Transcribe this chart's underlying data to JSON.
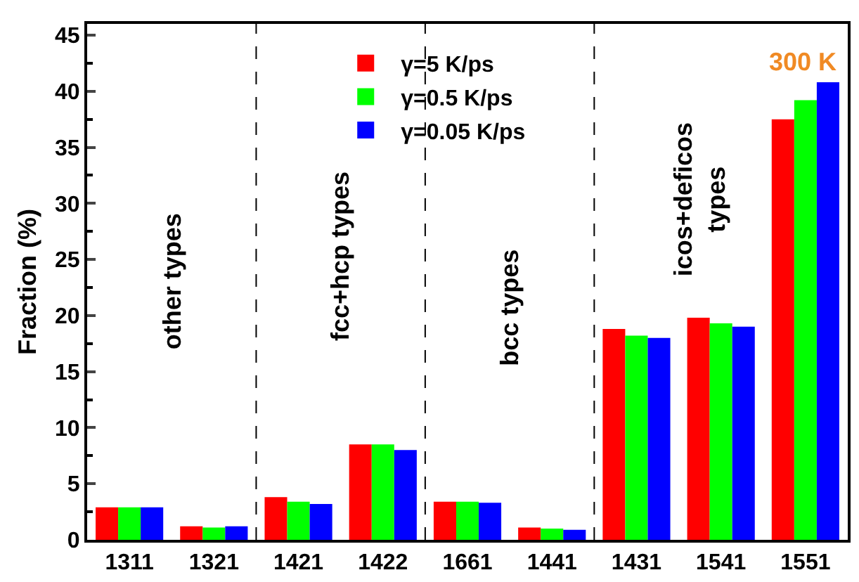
{
  "chart_data": {
    "type": "bar",
    "ylabel": "Fraction (%)",
    "categories": [
      "1311",
      "1321",
      "1421",
      "1422",
      "1661",
      "1441",
      "1431",
      "1541",
      "1551"
    ],
    "series": [
      {
        "name": "γ=5 K/ps",
        "color": "#ff0000",
        "values": [
          2.9,
          1.2,
          3.8,
          8.5,
          3.4,
          1.1,
          18.8,
          19.8,
          37.5
        ]
      },
      {
        "name": "γ=0.5 K/ps",
        "color": "#00ff00",
        "values": [
          2.9,
          1.1,
          3.4,
          8.5,
          3.4,
          1.0,
          18.2,
          19.3,
          39.2
        ]
      },
      {
        "name": "γ=0.05 K/ps",
        "color": "#0000ff",
        "values": [
          2.9,
          1.2,
          3.2,
          8.0,
          3.3,
          0.9,
          18.0,
          19.0,
          40.8
        ]
      }
    ],
    "ylim": [
      0,
      46
    ],
    "yticks": [
      0,
      5,
      10,
      15,
      20,
      25,
      30,
      35,
      40,
      45
    ],
    "annotations": [
      "other types",
      "fcc+hcp types",
      "bcc types",
      "icos+deficos\ntypes",
      "300 K"
    ],
    "legend": "top",
    "grid": false
  }
}
